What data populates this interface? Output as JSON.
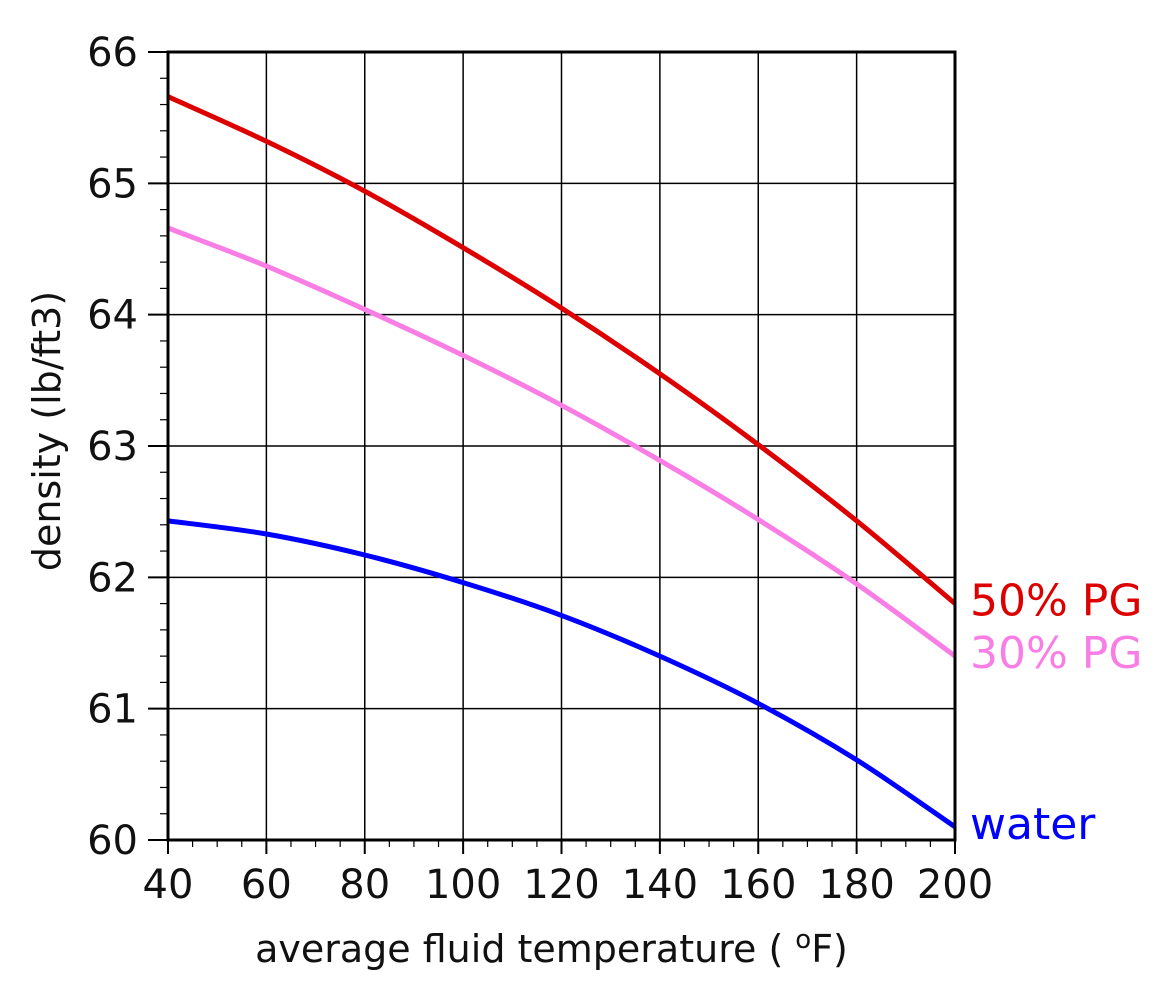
{
  "chart_data": {
    "type": "line",
    "title": "",
    "xlabel_prefix": "average fluid temperature (",
    "xlabel_unit_sup": "o",
    "xlabel_unit": "F)",
    "ylabel": "density (lb/ft3)",
    "xlim": [
      40,
      200
    ],
    "ylim": [
      60,
      66
    ],
    "x_ticks": [
      40,
      60,
      80,
      100,
      120,
      140,
      160,
      180,
      200
    ],
    "y_ticks": [
      60,
      61,
      62,
      63,
      64,
      65,
      66
    ],
    "x_tick_labels": [
      "40",
      "60",
      "80",
      "100",
      "120",
      "140",
      "160",
      "180",
      "200"
    ],
    "y_tick_labels": [
      "60",
      "61",
      "62",
      "63",
      "64",
      "65",
      "66"
    ],
    "grid": true,
    "legend": "inline-right",
    "series": [
      {
        "name": "50% PG",
        "color": "#dd0000",
        "x": [
          40,
          60,
          80,
          100,
          120,
          140,
          160,
          180,
          200
        ],
        "values": [
          65.66,
          65.32,
          64.94,
          64.51,
          64.05,
          63.55,
          63.01,
          62.43,
          61.8
        ]
      },
      {
        "name": "30% PG",
        "color": "#f87ee6",
        "x": [
          40,
          60,
          80,
          100,
          120,
          140,
          160,
          180,
          200
        ],
        "values": [
          64.66,
          64.37,
          64.04,
          63.69,
          63.31,
          62.89,
          62.44,
          61.95,
          61.4
        ]
      },
      {
        "name": "water",
        "color": "#0000ff",
        "x": [
          40,
          60,
          80,
          100,
          120,
          140,
          160,
          180,
          200
        ],
        "values": [
          62.43,
          62.33,
          62.17,
          61.96,
          61.71,
          61.4,
          61.04,
          60.61,
          60.1
        ]
      }
    ]
  }
}
